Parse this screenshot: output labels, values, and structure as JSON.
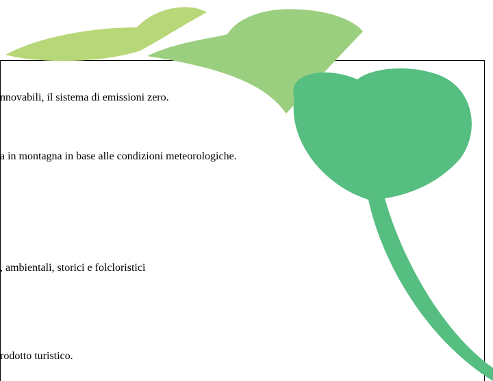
{
  "document": {
    "lines": [
      "nnovabili, il sistema di emissioni zero.",
      "a in montagna in base alle condizioni meteorologiche.",
      ", ambientali, storici e folcloristici",
      "rodotto turistico."
    ]
  }
}
